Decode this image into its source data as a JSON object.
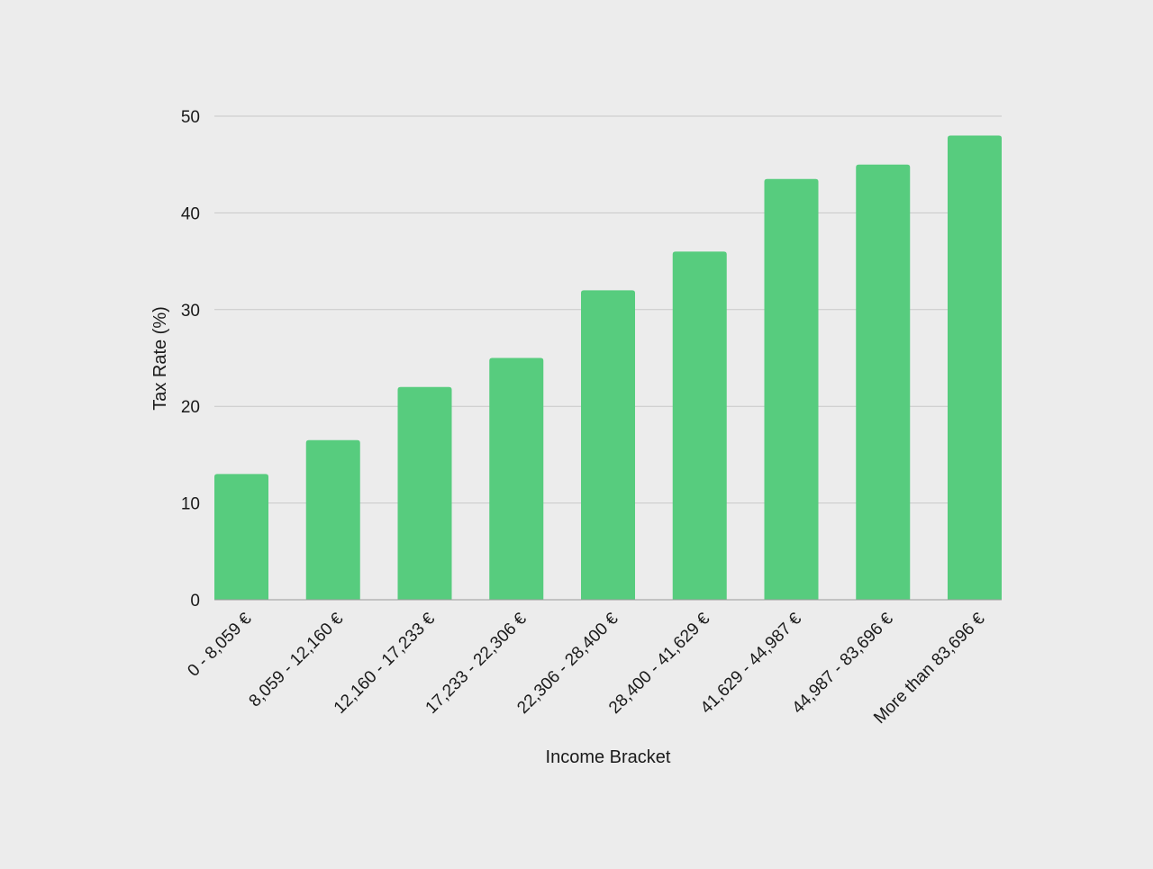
{
  "chart_data": {
    "type": "bar",
    "title": "",
    "xlabel": "Income Bracket",
    "ylabel": "Tax Rate (%)",
    "ylim": [
      0,
      50
    ],
    "yticks": [
      "0",
      "10",
      "20",
      "30",
      "40",
      "50"
    ],
    "grid": true,
    "categories": [
      "0 - 8,059 €",
      "8,059 - 12,160 €",
      "12,160 - 17,233 €",
      "17,233 - 22,306 €",
      "22,306 - 28,400 €",
      "28,400 - 41,629 €",
      "41,629 - 44,987 €",
      "44,987 - 83,696 €",
      "More than 83,696 €"
    ],
    "values": [
      13,
      16.5,
      22,
      25,
      32,
      36,
      43.5,
      45,
      48
    ],
    "colors": {
      "bar": "#57cc7e",
      "grid": "#c8c8c8",
      "axis": "#9a9a9a",
      "background": "#ececec"
    }
  }
}
